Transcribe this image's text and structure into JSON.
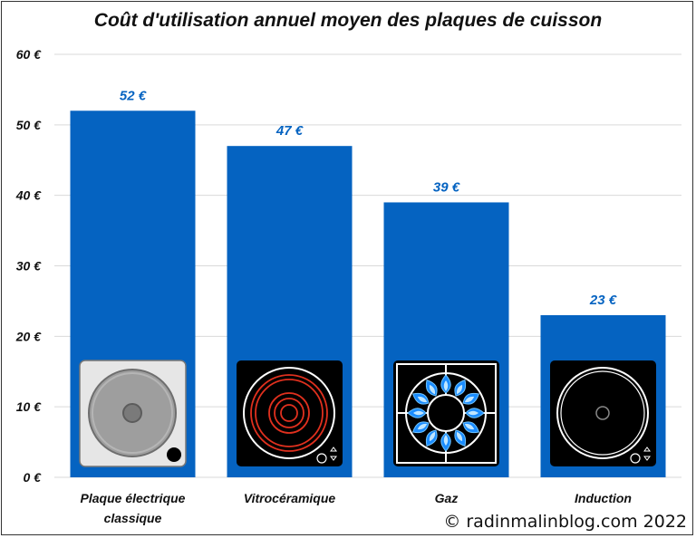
{
  "chart_data": {
    "type": "bar",
    "title": "Coût d'utilisation annuel moyen des plaques de cuisson",
    "categories": [
      "Plaque électrique|classique",
      "Vitrocéramique",
      "Gaz",
      "Induction"
    ],
    "values": [
      52,
      47,
      39,
      23
    ],
    "data_labels": [
      "52 €",
      "47 €",
      "39 €",
      "23 €"
    ],
    "ylim": [
      0,
      60
    ],
    "yticks": [
      0,
      10,
      20,
      30,
      40,
      50,
      60
    ],
    "ytick_labels": [
      "0 €",
      "10 €",
      "20 €",
      "30 €",
      "40 €",
      "50 €",
      "60 €"
    ],
    "grid": true,
    "bar_color": "#0563c1",
    "label_color": "#0563c1",
    "icons": [
      "electric-plate-icon",
      "ceramic-hob-icon",
      "gas-burner-icon",
      "induction-hob-icon"
    ]
  },
  "credit": "© radinmalinblog.com 2022"
}
